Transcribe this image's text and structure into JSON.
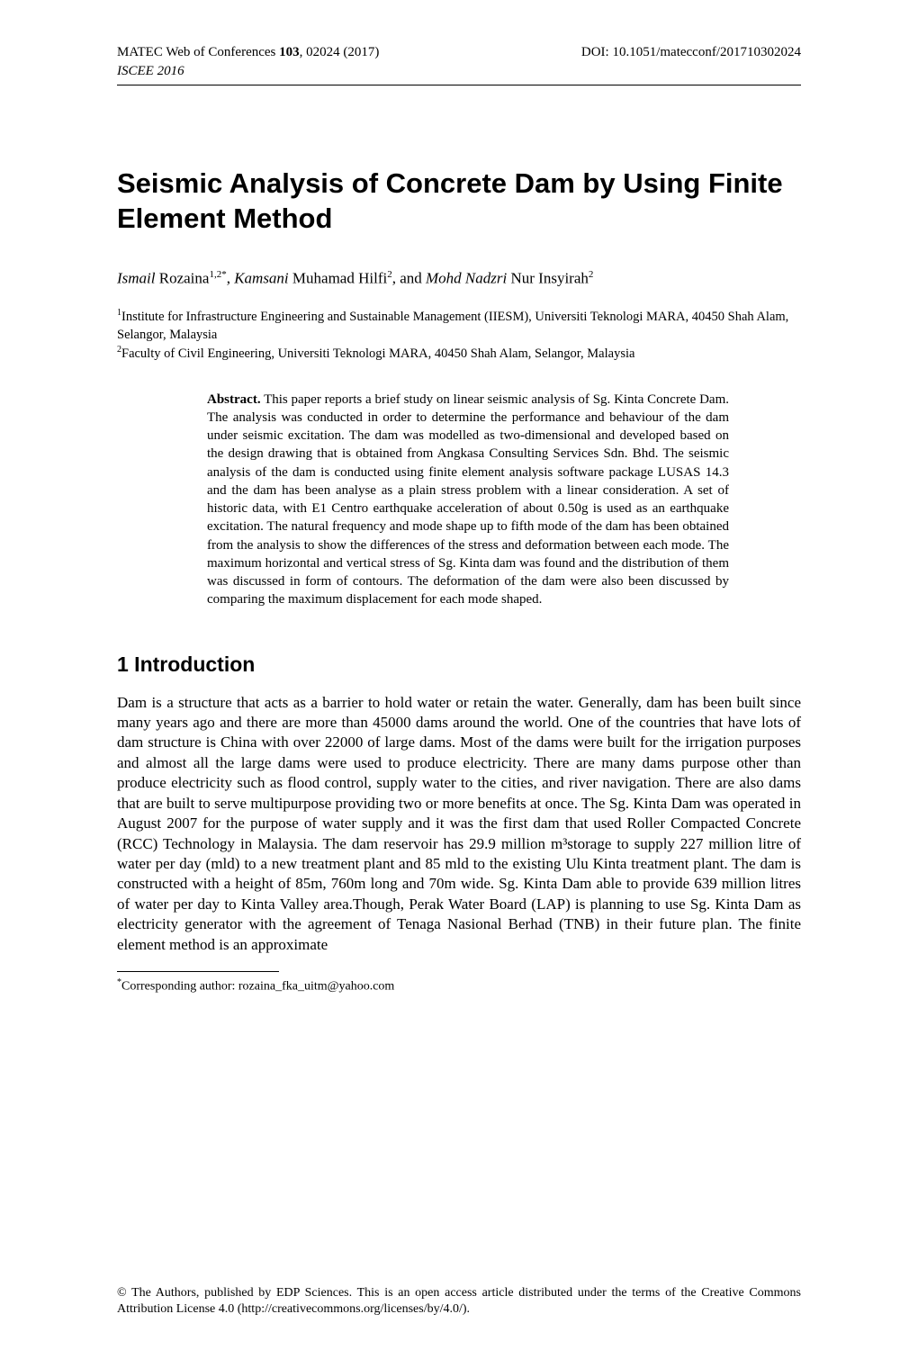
{
  "header": {
    "journal_left": "MATEC Web of Conferences",
    "volume": "103",
    "article_no": ", 02024 (2017)",
    "doi_label": "DOI: 10.1051/matecconf/201710302024",
    "conference": "ISCEE 2016"
  },
  "title": "Seismic Analysis of Concrete Dam by Using Finite Element Method",
  "authors": {
    "a1_surname": "Ismail",
    "a1_given": " Rozaina",
    "a1_sup": "1,2*",
    "sep1": ", ",
    "a2_surname": "Kamsani",
    "a2_given": " Muhamad Hilfi",
    "a2_sup": "2",
    "sep2": ", and ",
    "a3_surname": "Mohd Nadzri",
    "a3_given": " Nur Insyirah",
    "a3_sup": "2"
  },
  "affiliations": {
    "aff1_sup": "1",
    "aff1_text": "Institute for Infrastructure Engineering and Sustainable Management (IIESM), Universiti Teknologi MARA, 40450 Shah Alam, Selangor, Malaysia",
    "aff2_sup": "2",
    "aff2_text": "Faculty of Civil Engineering, Universiti Teknologi MARA, 40450 Shah Alam, Selangor, Malaysia"
  },
  "abstract": {
    "label": "Abstract.",
    "text": " This paper reports a brief study on linear seismic analysis of Sg. Kinta Concrete Dam. The analysis was conducted in order to determine the performance and behaviour of the dam under seismic excitation. The dam was modelled as two-dimensional and developed based on the design drawing that is obtained from Angkasa Consulting Services Sdn. Bhd. The seismic analysis of the dam is conducted using finite element analysis software package LUSAS 14.3 and the dam has been analyse as a plain stress problem with a linear consideration. A set of historic data, with E1 Centro earthquake acceleration of about 0.50g is used as an earthquake excitation. The natural frequency and mode shape up to fifth mode of the dam has been obtained from the analysis to show the differences of the stress and deformation between each mode. The maximum horizontal and vertical stress of Sg. Kinta dam was found and the distribution of them was discussed in form of contours. The deformation of the dam were also been discussed by comparing the maximum displacement for each mode shaped."
  },
  "section1": {
    "heading": "1 Introduction",
    "body": "Dam is a structure that acts as a barrier to hold water or retain the water. Generally, dam has been built since many years ago and there are more than 45000 dams around the world. One of the countries that have lots of dam structure is China with over 22000 of large dams. Most of the dams were built for the irrigation purposes and almost all the large dams were used to produce electricity. There are many dams purpose other than produce electricity such as flood control, supply water to the cities, and river navigation. There are also dams that are built to serve multipurpose providing two or more benefits at once. The Sg. Kinta Dam was operated in August 2007 for the purpose of water supply and it was the first dam that used Roller Compacted Concrete (RCC) Technology in Malaysia. The dam reservoir has 29.9 million m³storage to supply 227 million litre of water per day (mld) to a new treatment plant and 85 mld to the existing Ulu Kinta treatment plant. The dam is constructed with a height of 85m, 760m long and 70m wide. Sg. Kinta Dam able to provide 639 million litres of water per day to Kinta Valley area.Though, Perak Water Board (LAP) is planning to use Sg. Kinta Dam as electricity generator with the agreement of Tenaga Nasional Berhad (TNB) in their future plan. The finite element method is an approximate"
  },
  "footnote": {
    "marker": "*",
    "text": "Corresponding author: rozaina_fka_uitm@yahoo.com"
  },
  "license": "© The Authors, published by EDP Sciences. This is an open access article distributed under the terms of the Creative Commons Attribution License 4.0 (http://creativecommons.org/licenses/by/4.0/).",
  "styles": {
    "page_bg": "#ffffff",
    "text_color": "#000000",
    "title_fontsize": 31,
    "title_fontweight": "bold",
    "title_fontfamily": "Arial",
    "heading_fontsize": 23,
    "heading_fontfamily": "Arial",
    "body_fontsize": 17,
    "body_fontfamily": "Times New Roman",
    "abstract_fontsize": 15,
    "header_fontsize": 15,
    "footnote_fontsize": 14,
    "license_fontsize": 14,
    "hr_color": "#000000"
  }
}
